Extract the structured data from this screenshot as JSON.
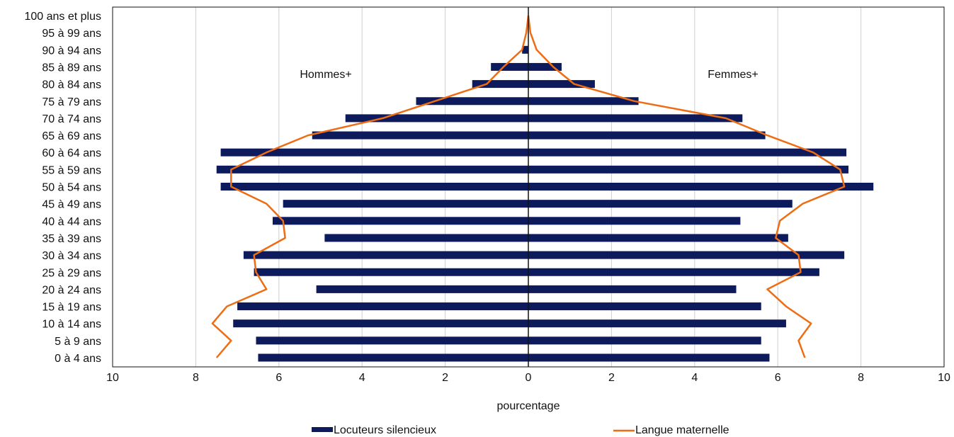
{
  "chart_data": {
    "type": "bar",
    "orientation": "horizontal",
    "subtype": "population-pyramid",
    "categories": [
      "0 à 4 ans",
      "5 à 9 ans",
      "10 à 14 ans",
      "15 à 19 ans",
      "20 à 24 ans",
      "25 à 29 ans",
      "30 à 34 ans",
      "35 à 39 ans",
      "40 à 44 ans",
      "45 à 49 ans",
      "50 à 54 ans",
      "55 à 59 ans",
      "60 à 64 ans",
      "65 à 69 ans",
      "70 à 74 ans",
      "75 à 79 ans",
      "80 à 84 ans",
      "85 à 89 ans",
      "90 à 94 ans",
      "95 à 99 ans",
      "100 ans et plus"
    ],
    "series": [
      {
        "name": "Locuteurs silencieux",
        "kind": "bar",
        "color": "#0d1a5c",
        "hommes": [
          6.5,
          6.55,
          7.1,
          7.0,
          5.1,
          6.6,
          6.85,
          4.9,
          6.15,
          5.9,
          7.4,
          7.5,
          7.4,
          5.2,
          4.4,
          2.7,
          1.35,
          0.9,
          0.15,
          0,
          0
        ],
        "femmes": [
          5.8,
          5.6,
          6.2,
          5.6,
          5.0,
          7.0,
          7.6,
          6.25,
          5.1,
          6.35,
          8.3,
          7.7,
          7.65,
          5.7,
          5.15,
          2.65,
          1.6,
          0.8,
          0,
          0,
          0
        ]
      },
      {
        "name": "Langue maternelle",
        "kind": "line",
        "color": "#ee6d14",
        "hommes": [
          7.5,
          7.15,
          7.6,
          7.25,
          6.3,
          6.55,
          6.6,
          5.85,
          5.9,
          6.3,
          7.15,
          7.15,
          6.3,
          5.3,
          3.5,
          2.25,
          1.0,
          0.6,
          0.15,
          0.05,
          0
        ],
        "femmes": [
          6.65,
          6.5,
          6.8,
          6.2,
          5.75,
          6.55,
          6.5,
          5.95,
          6.05,
          6.6,
          7.6,
          7.5,
          6.85,
          5.75,
          4.75,
          2.55,
          1.1,
          0.6,
          0.2,
          0.05,
          0
        ]
      }
    ],
    "annotations": {
      "left": "Hommes+",
      "right": "Femmes+"
    },
    "xlabel": "pourcentage",
    "xlim": [
      -10,
      10
    ],
    "xticks": [
      "10",
      "8",
      "6",
      "4",
      "2",
      "0",
      "2",
      "4",
      "6",
      "8",
      "10"
    ],
    "grid": "vertical",
    "legend": "bottom"
  }
}
